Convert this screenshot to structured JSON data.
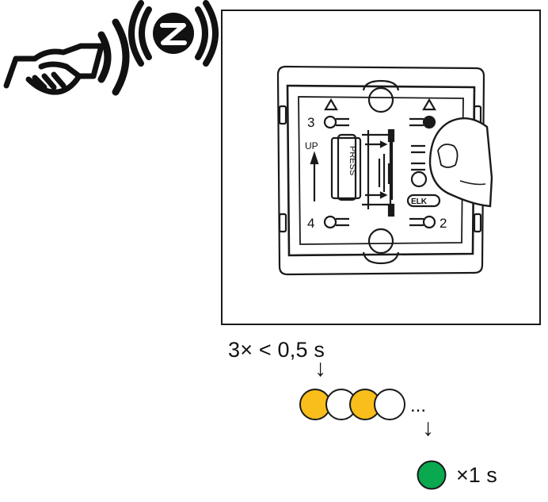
{
  "icons": {
    "handshake": "handshake-icon",
    "zigbee": "zigbee-icon",
    "finger": "finger-icon"
  },
  "device": {
    "top_left_number": "3",
    "bottom_left_number": "4",
    "bottom_right_number": "2",
    "up_label": "UP",
    "press_label": "PRESS",
    "brand_label": "ELK"
  },
  "sequence": {
    "press_timing": "3× < 0,5 s",
    "ellipsis": "...",
    "arrow": "↓",
    "green_duration": "×1 s"
  },
  "colors": {
    "led_yellow": "#F9BE1C",
    "led_white": "#FFFFFF",
    "led_green": "#0AA84F",
    "line": "#1A1A1A"
  }
}
